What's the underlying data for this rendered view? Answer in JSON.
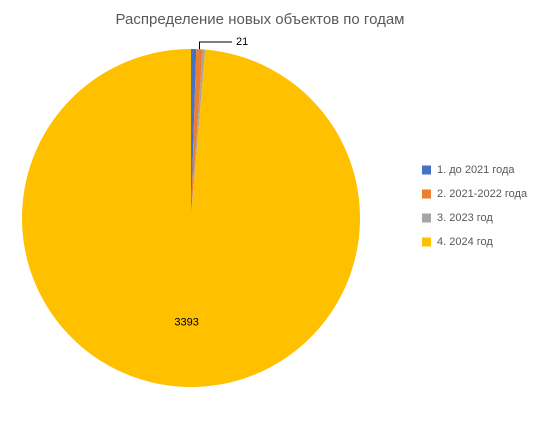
{
  "chart_data": {
    "type": "pie",
    "title": "Распределение новых объектов по годам",
    "categories": [
      "1. до 2021 года",
      "2. 2021-2022 года",
      "3. 2023 год",
      "4. 2024 год"
    ],
    "values": [
      17,
      21,
      8,
      3393
    ],
    "colors": [
      "#4472c4",
      "#ed7d31",
      "#a5a5a5",
      "#ffc000"
    ],
    "show_labels": [
      false,
      true,
      false,
      true
    ],
    "legend": "right"
  }
}
